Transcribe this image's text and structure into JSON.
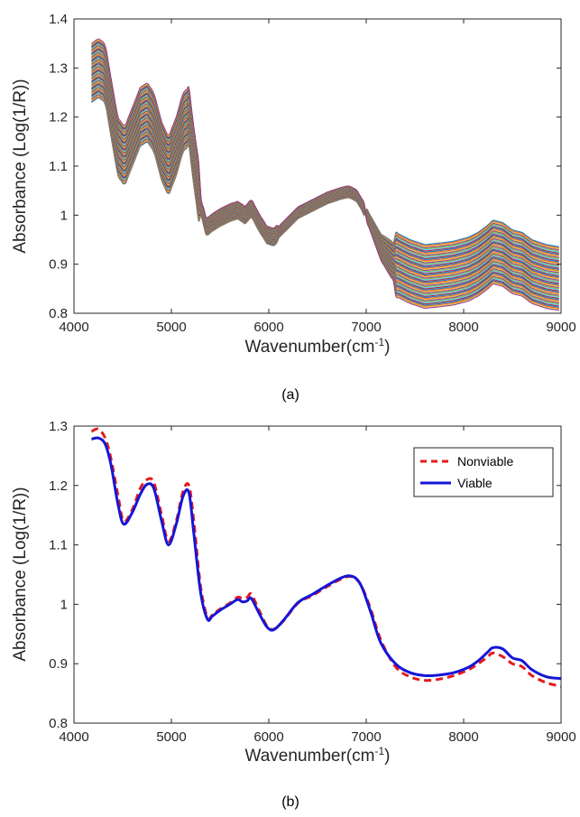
{
  "chart_data": [
    {
      "type": "line",
      "panel_label": "(a)",
      "xlabel": "Wavenumber(cm",
      "xlabel_sup": "-1",
      "xlabel_suffix": ")",
      "ylabel": "Absorbance (Log(1/R))",
      "xlim": [
        4000,
        9000
      ],
      "ylim": [
        0.8,
        1.4
      ],
      "xticks": [
        4000,
        5000,
        6000,
        7000,
        8000,
        9000
      ],
      "yticks": [
        0.8,
        0.9,
        1,
        1.1,
        1.2,
        1.3,
        1.4
      ],
      "grid": false,
      "legend": "none",
      "series_count": 60,
      "envelope_note": "Many overlapping spectra; mean curve with per-spectrum offsets",
      "mean": {
        "x": [
          4180,
          4250,
          4320,
          4380,
          4450,
          4520,
          4600,
          4680,
          4750,
          4820,
          4900,
          4970,
          5050,
          5120,
          5180,
          5230,
          5300,
          5360,
          5420,
          5500,
          5600,
          5680,
          5720,
          5760,
          5820,
          5900,
          5980,
          6050,
          6150,
          6300,
          6450,
          6600,
          6750,
          6820,
          6900,
          6960,
          7050,
          7150,
          7300,
          7450,
          7600,
          7750,
          7900,
          8050,
          8150,
          8250,
          8300,
          8400,
          8500,
          8600,
          8700,
          8850,
          9000
        ],
        "y": [
          1.29,
          1.3,
          1.29,
          1.22,
          1.14,
          1.12,
          1.16,
          1.2,
          1.21,
          1.19,
          1.13,
          1.1,
          1.14,
          1.19,
          1.2,
          1.12,
          1.02,
          0.975,
          0.985,
          0.995,
          1.005,
          1.01,
          1.005,
          1.0,
          1.015,
          0.985,
          0.96,
          0.955,
          0.975,
          1.005,
          1.02,
          1.035,
          1.045,
          1.048,
          1.04,
          1.02,
          0.98,
          0.935,
          0.9,
          0.885,
          0.875,
          0.878,
          0.882,
          0.89,
          0.9,
          0.915,
          0.925,
          0.92,
          0.905,
          0.9,
          0.885,
          0.875,
          0.87
        ]
      },
      "spread_top": 0.08,
      "spread_bottom": 0.07
    },
    {
      "type": "line",
      "panel_label": "(b)",
      "xlabel": "Wavenumber(cm",
      "xlabel_sup": "-1",
      "xlabel_suffix": ")",
      "ylabel": "Absorbance (Log(1/R))",
      "xlim": [
        4000,
        9000
      ],
      "ylim": [
        0.8,
        1.3
      ],
      "xticks": [
        4000,
        5000,
        6000,
        7000,
        8000,
        9000
      ],
      "yticks": [
        0.8,
        0.9,
        1,
        1.1,
        1.2,
        1.3
      ],
      "grid": false,
      "legend": "top-right",
      "series": [
        {
          "name": "Nonviable",
          "color": "#e41a1c",
          "style": "dashed",
          "x": [
            4180,
            4250,
            4320,
            4380,
            4450,
            4510,
            4600,
            4680,
            4750,
            4820,
            4900,
            4970,
            5050,
            5120,
            5180,
            5230,
            5300,
            5370,
            5420,
            5500,
            5600,
            5680,
            5730,
            5780,
            5820,
            5900,
            5980,
            6050,
            6150,
            6300,
            6450,
            6600,
            6750,
            6830,
            6900,
            6960,
            7050,
            7150,
            7300,
            7450,
            7600,
            7750,
            7900,
            8050,
            8150,
            8250,
            8300,
            8400,
            8500,
            8600,
            8700,
            8850,
            9000
          ],
          "y": [
            1.291,
            1.295,
            1.28,
            1.245,
            1.185,
            1.14,
            1.16,
            1.195,
            1.21,
            1.205,
            1.15,
            1.106,
            1.14,
            1.19,
            1.2,
            1.14,
            1.03,
            0.978,
            0.982,
            0.992,
            1.002,
            1.012,
            1.01,
            1.012,
            1.017,
            0.99,
            0.964,
            0.958,
            0.972,
            1.002,
            1.015,
            1.03,
            1.043,
            1.047,
            1.042,
            1.028,
            0.99,
            0.94,
            0.895,
            0.878,
            0.872,
            0.874,
            0.88,
            0.89,
            0.9,
            0.912,
            0.918,
            0.912,
            0.9,
            0.895,
            0.88,
            0.868,
            0.862
          ]
        },
        {
          "name": "Viable",
          "color": "#1515d6",
          "style": "solid",
          "x": [
            4180,
            4250,
            4320,
            4380,
            4450,
            4510,
            4600,
            4680,
            4750,
            4820,
            4900,
            4970,
            5050,
            5120,
            5180,
            5230,
            5300,
            5370,
            5420,
            5500,
            5600,
            5680,
            5730,
            5780,
            5820,
            5900,
            5980,
            6050,
            6150,
            6300,
            6450,
            6600,
            6750,
            6830,
            6900,
            6960,
            7050,
            7150,
            7300,
            7450,
            7600,
            7750,
            7900,
            8050,
            8150,
            8250,
            8300,
            8400,
            8500,
            8600,
            8700,
            8850,
            9000
          ],
          "y": [
            1.278,
            1.28,
            1.27,
            1.235,
            1.17,
            1.135,
            1.155,
            1.185,
            1.202,
            1.195,
            1.14,
            1.1,
            1.135,
            1.182,
            1.188,
            1.12,
            1.02,
            0.975,
            0.98,
            0.99,
            1.0,
            1.008,
            1.004,
            1.006,
            1.01,
            0.985,
            0.962,
            0.957,
            0.973,
            1.003,
            1.017,
            1.032,
            1.045,
            1.048,
            1.043,
            1.027,
            0.985,
            0.935,
            0.9,
            0.885,
            0.88,
            0.881,
            0.885,
            0.894,
            0.905,
            0.92,
            0.927,
            0.925,
            0.91,
            0.905,
            0.89,
            0.878,
            0.875
          ]
        }
      ]
    }
  ]
}
